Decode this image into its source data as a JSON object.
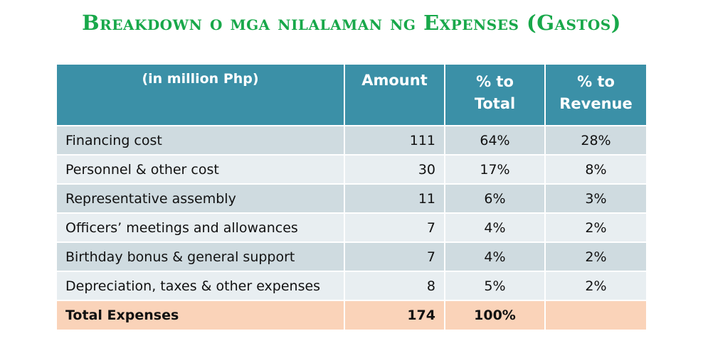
{
  "title": "Breakdown o mga nilalaman ng Expenses (Gastos)",
  "table": {
    "headers": {
      "label": "(in million Php)",
      "amount": "Amount",
      "pct_total_1": "% to",
      "pct_total_2": "Total",
      "pct_revenue_1": "% to",
      "pct_revenue_2": "Revenue"
    },
    "rows": [
      {
        "label": "Financing cost",
        "amount": "111",
        "pct_total": "64%",
        "pct_revenue": "28%"
      },
      {
        "label": "Personnel & other cost",
        "amount": "30",
        "pct_total": "17%",
        "pct_revenue": "8%"
      },
      {
        "label": "Representative assembly",
        "amount": "11",
        "pct_total": "6%",
        "pct_revenue": "3%"
      },
      {
        "label": "Officers’ meetings and allowances",
        "amount": "7",
        "pct_total": "4%",
        "pct_revenue": "2%"
      },
      {
        "label": "Birthday bonus & general support",
        "amount": "7",
        "pct_total": "4%",
        "pct_revenue": "2%"
      },
      {
        "label": "Depreciation, taxes & other expenses",
        "amount": "8",
        "pct_total": "5%",
        "pct_revenue": "2%"
      }
    ],
    "total": {
      "label": "Total Expenses",
      "amount": "174",
      "pct_total": "100%",
      "pct_revenue": ""
    }
  },
  "colors": {
    "title": "#18a84a",
    "header_bg": "#3b90a7",
    "row_odd": "#cfdbe0",
    "row_even": "#e8eef1",
    "total_row": "#fad3b9"
  }
}
